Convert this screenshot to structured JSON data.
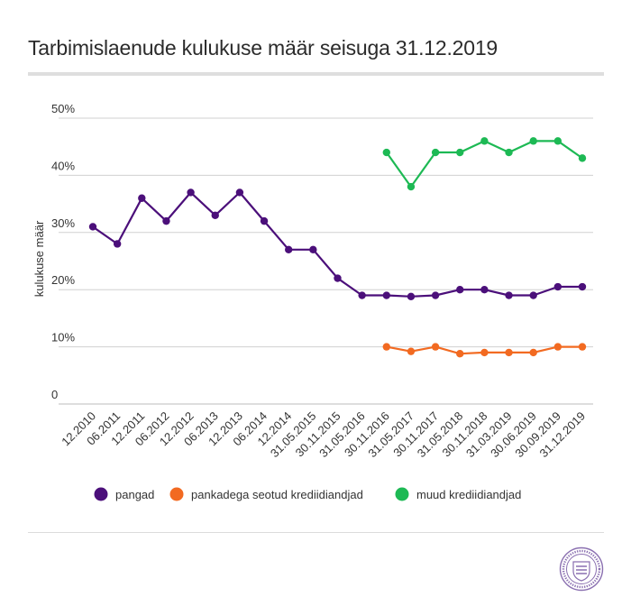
{
  "chart_data": {
    "type": "line",
    "title": "Tarbimislaenude kulukuse määr seisuga 31.12.2019",
    "ylabel": "kulukuse määr",
    "xlabel": "",
    "ylim": [
      0,
      50
    ],
    "yticks": [
      "0",
      "10%",
      "20%",
      "30%",
      "40%",
      "50%"
    ],
    "ytick_values": [
      0,
      10,
      20,
      30,
      40,
      50
    ],
    "grid": true,
    "legend_position": "bottom",
    "categories": [
      "12.2010",
      "06.2011",
      "12.2011",
      "06.2012",
      "12.2012",
      "06.2013",
      "12.2013",
      "06.2014",
      "12.2014",
      "31.05.2015",
      "30.11.2015",
      "31.05.2016",
      "30.11.2016",
      "31.05.2017",
      "30.11.2017",
      "31.05.2018",
      "30.11.2018",
      "31.03.2019",
      "30.06.2019",
      "30.09.2019",
      "31.12.2019"
    ],
    "series": [
      {
        "name": "pangad",
        "color": "#4b0f7a",
        "values": [
          31,
          28,
          36,
          32,
          37,
          33,
          37,
          32,
          27,
          27,
          22,
          19,
          19,
          18.8,
          19,
          20,
          20,
          19,
          19,
          20.5,
          20.5
        ]
      },
      {
        "name": "pankadega seotud krediidiandjad",
        "color": "#f26a21",
        "values": [
          null,
          null,
          null,
          null,
          null,
          null,
          null,
          null,
          null,
          null,
          null,
          null,
          10,
          9.2,
          10,
          8.8,
          9,
          9,
          9,
          10,
          10
        ]
      },
      {
        "name": "muud krediidiandjad",
        "color": "#1db954",
        "values": [
          null,
          null,
          null,
          null,
          null,
          null,
          null,
          null,
          null,
          null,
          null,
          null,
          44,
          38,
          44,
          44,
          46,
          44,
          46,
          46,
          43
        ]
      }
    ]
  },
  "logo": {
    "name": "Finantsinspektsioon",
    "color": "#8a6fb0"
  }
}
